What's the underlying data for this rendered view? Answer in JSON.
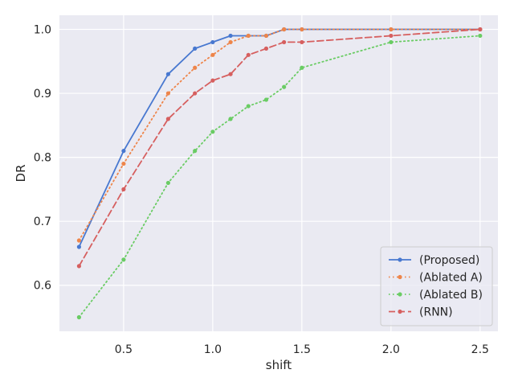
{
  "chart_data": {
    "type": "line",
    "title": "",
    "xlabel": "shift",
    "ylabel": "DR",
    "xlim": [
      0.14,
      2.6
    ],
    "ylim": [
      0.528,
      1.022
    ],
    "xticks": [
      0.5,
      1.0,
      1.5,
      2.0,
      2.5
    ],
    "xtick_labels": [
      "0.5",
      "1.0",
      "1.5",
      "2.0",
      "2.5"
    ],
    "yticks": [
      0.6,
      0.7,
      0.8,
      0.9,
      1.0
    ],
    "ytick_labels": [
      "0.6",
      "0.7",
      "0.8",
      "0.9",
      "1.0"
    ],
    "grid": true,
    "legend_position": "lower-right",
    "x": [
      0.25,
      0.5,
      0.75,
      0.9,
      1.0,
      1.1,
      1.2,
      1.3,
      1.4,
      1.5,
      2.0,
      2.5
    ],
    "series": [
      {
        "name": "(Proposed)",
        "color": "#4878d0",
        "linestyle": "solid",
        "values": [
          0.66,
          0.81,
          0.93,
          0.97,
          0.98,
          0.99,
          0.99,
          0.99,
          1.0,
          1.0,
          1.0,
          1.0
        ]
      },
      {
        "name": "(Ablated A)",
        "color": "#ee854a",
        "linestyle": "dotted",
        "values": [
          0.67,
          0.79,
          0.9,
          0.94,
          0.96,
          0.98,
          0.99,
          0.99,
          1.0,
          1.0,
          1.0,
          1.0
        ]
      },
      {
        "name": "(Ablated B)",
        "color": "#6acc64",
        "linestyle": "dotted",
        "values": [
          0.55,
          0.64,
          0.76,
          0.81,
          0.84,
          0.86,
          0.88,
          0.89,
          0.91,
          0.94,
          0.98,
          0.99
        ]
      },
      {
        "name": "(RNN)",
        "color": "#d65f5f",
        "linestyle": "dashed",
        "values": [
          0.63,
          0.75,
          0.86,
          0.9,
          0.92,
          0.93,
          0.96,
          0.97,
          0.98,
          0.98,
          0.99,
          1.0
        ]
      }
    ]
  }
}
